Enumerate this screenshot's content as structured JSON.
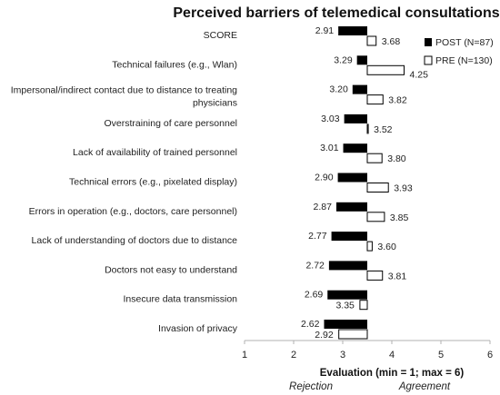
{
  "chart_data": {
    "type": "bar",
    "orientation": "horizontal",
    "title": "Perceived barriers of telemedical consultations",
    "xlabel": "Evaluation (min = 1; max = 6)",
    "annotations": {
      "left": "Rejection",
      "right": "Agreement"
    },
    "xlim": [
      1,
      6
    ],
    "xticks": [
      "1",
      "2",
      "3",
      "4",
      "5",
      "6"
    ],
    "reference_value": 3.5,
    "legend_position": "top-right",
    "categories": [
      [
        "SCORE"
      ],
      [
        "Technical failures (e.g., Wlan)"
      ],
      [
        "Impersonal/indirect contact due to distance to treating",
        "physicians"
      ],
      [
        "Overstraining of care personnel"
      ],
      [
        "Lack of availability of trained personnel"
      ],
      [
        "Technical errors (e.g., pixelated display)"
      ],
      [
        "Errors in operation (e.g., doctors, care personnel)"
      ],
      [
        "Lack of understanding of doctors due to distance"
      ],
      [
        "Doctors not easy to understand"
      ],
      [
        "Insecure data transmission"
      ],
      [
        "Invasion of privacy"
      ]
    ],
    "series": [
      {
        "name": "POST (N=87)",
        "color": "#000000",
        "fill": "solid",
        "values": [
          2.91,
          3.29,
          3.2,
          3.03,
          3.01,
          2.9,
          2.87,
          2.77,
          2.72,
          2.69,
          2.62
        ],
        "labels": [
          "2.91",
          "3.29",
          "3.20",
          "3.03",
          "3.01",
          "2.90",
          "2.87",
          "2.77",
          "2.72",
          "2.69",
          "2.62"
        ]
      },
      {
        "name": "PRE (N=130)",
        "color": "#000000",
        "fill": "hollow",
        "values": [
          3.68,
          4.25,
          3.82,
          3.52,
          3.8,
          3.93,
          3.85,
          3.6,
          3.81,
          3.35,
          2.92
        ],
        "labels": [
          "3.68",
          "4.25",
          "3.82",
          "3.52",
          "3.80",
          "3.93",
          "3.85",
          "3.60",
          "3.81",
          "3.35",
          "2.92"
        ]
      }
    ]
  }
}
